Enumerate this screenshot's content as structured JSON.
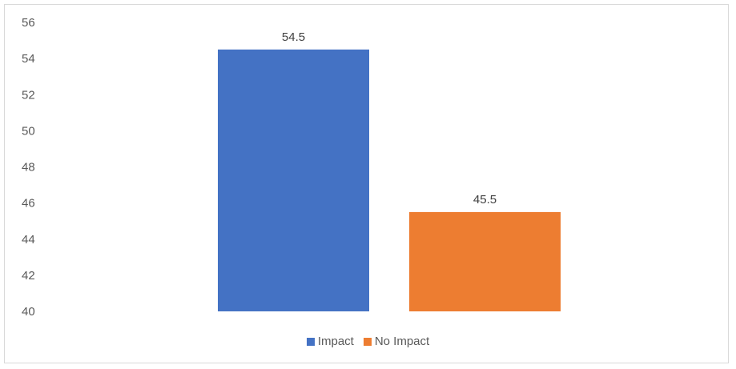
{
  "chart_data": {
    "type": "bar",
    "title": "",
    "xlabel": "",
    "ylabel": "",
    "categories": [
      "Impact",
      "No Impact"
    ],
    "values": [
      54.5,
      45.5
    ],
    "data_labels": [
      "54.5",
      "45.5"
    ],
    "ylim": [
      40,
      56
    ],
    "yticks": [
      40,
      42,
      44,
      46,
      48,
      50,
      52,
      54,
      56
    ],
    "ytick_labels": [
      "40",
      "42",
      "44",
      "46",
      "48",
      "50",
      "52",
      "54",
      "56"
    ],
    "colors": [
      "#4472C4",
      "#ED7D31"
    ],
    "grid": false,
    "legend": {
      "position": "bottom",
      "entries": [
        {
          "label": "Impact",
          "color": "#4472C4"
        },
        {
          "label": "No Impact",
          "color": "#ED7D31"
        }
      ]
    }
  }
}
